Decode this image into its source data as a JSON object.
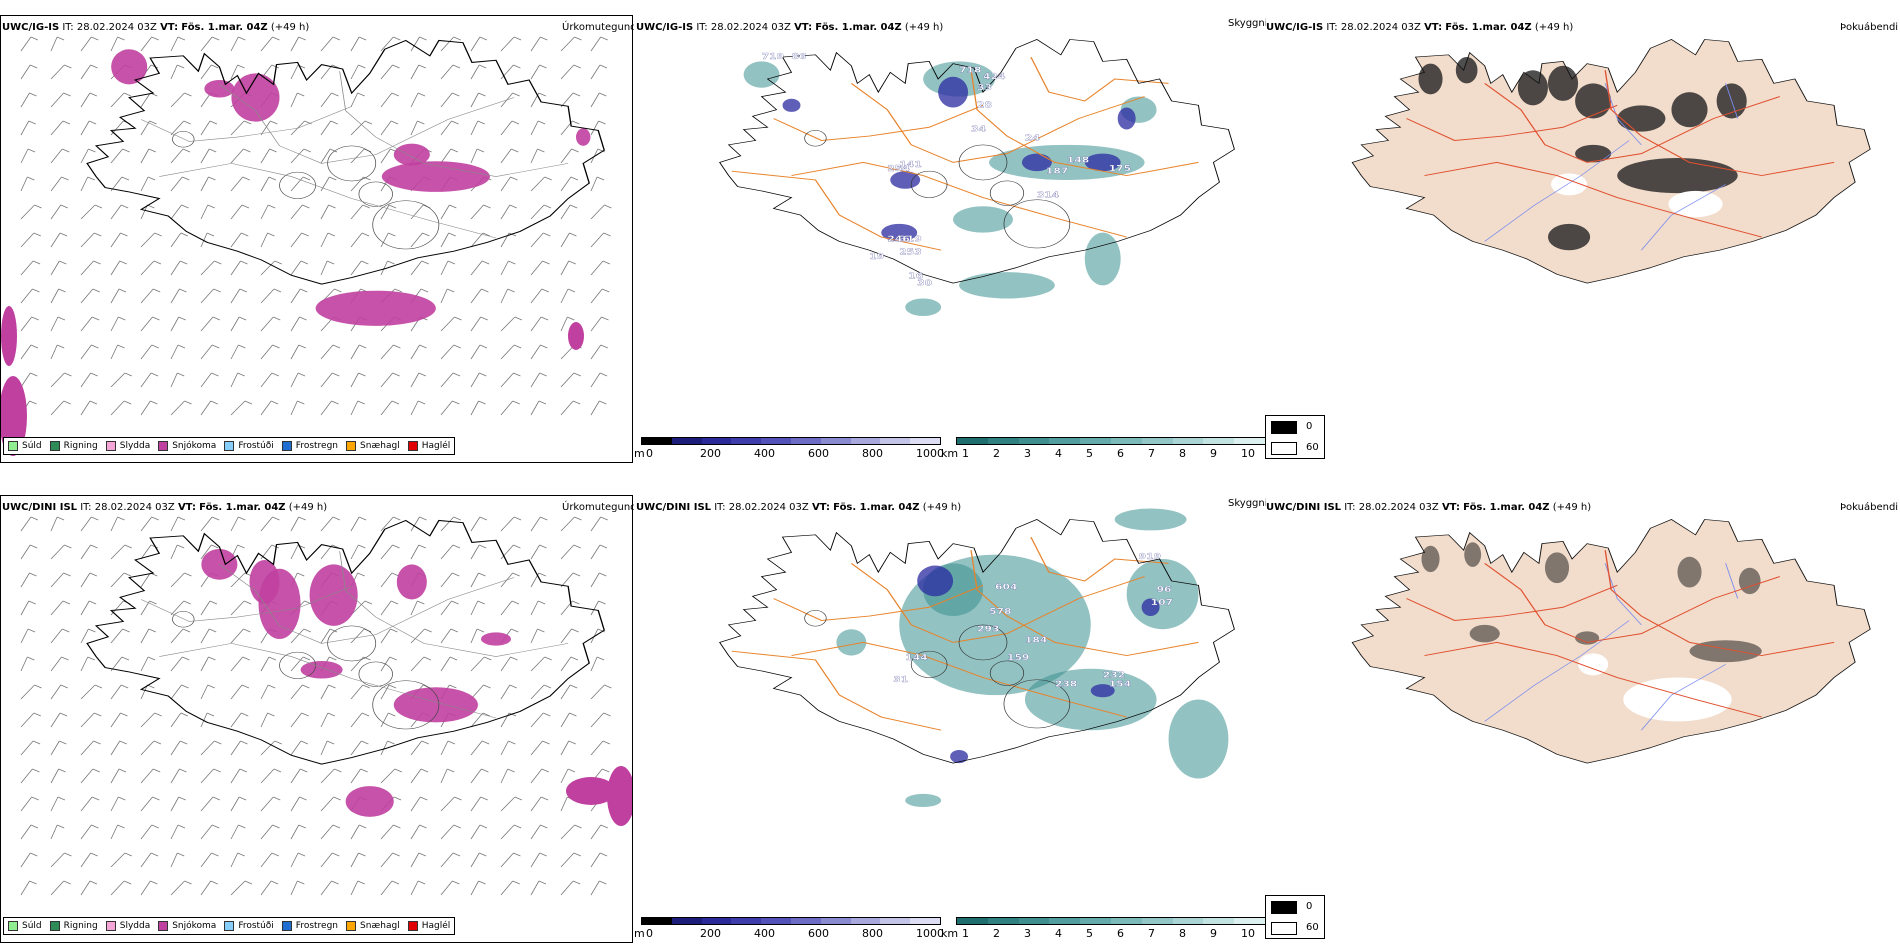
{
  "rows": [
    {
      "model": "UWC/IG-IS",
      "it_label": "IT:",
      "it_value": "28.02.2024 03Z",
      "vt_label": "VT:",
      "vt_value": "Fös. 1.mar. 04Z",
      "lead": "(+49 h)"
    },
    {
      "model": "UWC/DINI ISL",
      "it_label": "IT:",
      "it_value": "28.02.2024 03Z",
      "vt_label": "VT:",
      "vt_value": "Fös. 1.mar. 04Z",
      "lead": "(+49 h)"
    }
  ],
  "titles": {
    "precip_type": "Úrkomutegund",
    "visibility": "Skyggni",
    "fog": "Þokuábendi"
  },
  "precip_legend": [
    {
      "label": "Súld",
      "color": "#90ee90"
    },
    {
      "label": "Rigning",
      "color": "#2e8b57"
    },
    {
      "label": "Slydda",
      "color": "#f4a6d7"
    },
    {
      "label": "Snjókoma",
      "color": "#c040a0"
    },
    {
      "label": "Frostúði",
      "color": "#87cefa"
    },
    {
      "label": "Frostregn",
      "color": "#1f6fd0"
    },
    {
      "label": "Snæhagl",
      "color": "#ffa500"
    },
    {
      "label": "Haglél",
      "color": "#e00000"
    }
  ],
  "visibility_scale": {
    "m_unit": "m",
    "m_ticks": [
      "0",
      "200",
      "400",
      "600",
      "800",
      "1000"
    ],
    "m_colors": [
      "#000000",
      "#1c1c7a",
      "#2a2a9a",
      "#3c3cab",
      "#5252b8",
      "#6c6cc4",
      "#8a8ad0",
      "#a8a8dc",
      "#c4c4e8",
      "#dcdcf2"
    ],
    "km_unit": "km",
    "km_ticks": [
      "1",
      "2",
      "3",
      "4",
      "5",
      "6",
      "7",
      "8",
      "9",
      "10"
    ],
    "km_colors": [
      "#1e6e6e",
      "#2f8080",
      "#3f8f8f",
      "#529d9d",
      "#66abab",
      "#7cb9b9",
      "#93c7c7",
      "#abd5d5",
      "#c3e3e3",
      "#dcf0f0"
    ]
  },
  "fog_legend": [
    {
      "label": "0",
      "color": "#000000"
    },
    {
      "label": "60",
      "color": "#ffffff"
    }
  ],
  "visibility_labels_top": [
    "719",
    "86",
    "718",
    "424",
    "33",
    "28",
    "34",
    "24",
    "141",
    "254",
    "148",
    "187",
    "175",
    "314",
    "319",
    "246",
    "253",
    "19",
    "30",
    "16"
  ],
  "visibility_labels_bottom": [
    "919",
    "96",
    "107",
    "604",
    "578",
    "293",
    "184",
    "159",
    "144",
    "232",
    "154",
    "238",
    "31"
  ],
  "colors": {
    "coast": "#000000",
    "roads": "#e8832a",
    "land_fog": "#f2dccb",
    "fog_roads": "#e05030",
    "rivers": "#7a8cf0",
    "snow": "#c040a0",
    "teal": "#3a9090",
    "blue": "#2a2aa0"
  }
}
